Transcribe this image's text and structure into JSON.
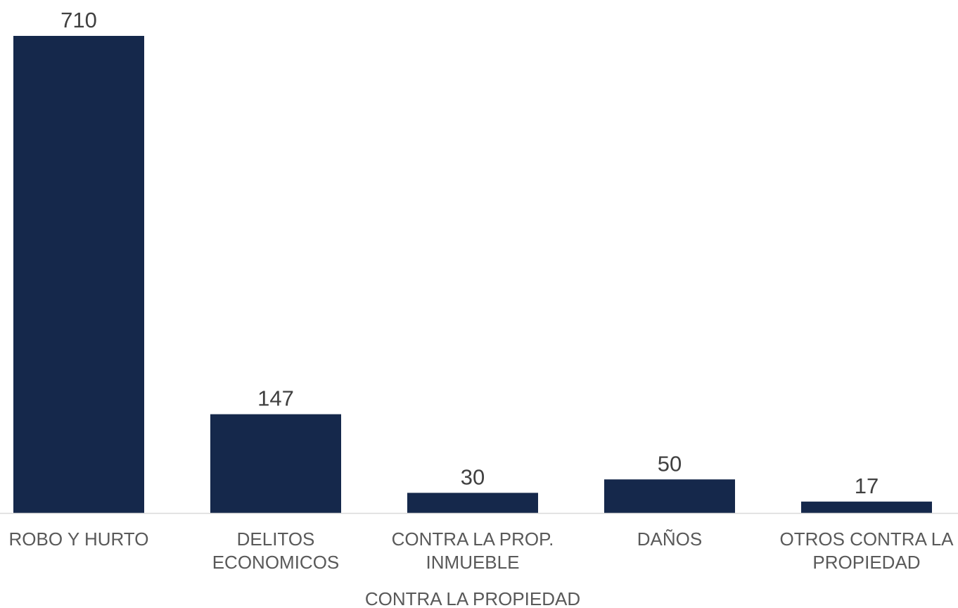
{
  "chart_data": {
    "type": "bar",
    "categories": [
      [
        "ROBO Y HURTO"
      ],
      [
        "DELITOS",
        "ECONOMICOS"
      ],
      [
        "CONTRA LA PROP.",
        "INMUEBLE"
      ],
      [
        "DAÑOS"
      ],
      [
        "OTROS CONTRA LA",
        "PROPIEDAD"
      ]
    ],
    "values": [
      710,
      147,
      30,
      50,
      17
    ],
    "group_label": "CONTRA LA PROPIEDAD",
    "bar_color": "#15284b",
    "axis_color": "#d9d9d9",
    "grid": false,
    "legend": "none"
  }
}
